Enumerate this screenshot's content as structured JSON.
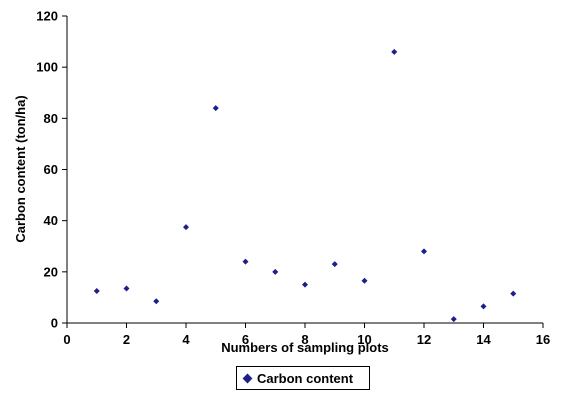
{
  "chart_data": {
    "type": "scatter",
    "xlabel": "Numbers of sampling plots",
    "ylabel": "Carbon content (ton/ha)",
    "xlim": [
      0,
      16
    ],
    "ylim": [
      0,
      120
    ],
    "xticks": [
      "0",
      "2",
      "4",
      "6",
      "8",
      "10",
      "12",
      "14",
      "16"
    ],
    "yticks": [
      "0",
      "20",
      "40",
      "60",
      "80",
      "100",
      "120"
    ],
    "grid": false,
    "legend_position": "bottom",
    "series": [
      {
        "name": "Carbon content",
        "color": "#1f1f8a",
        "marker": "diamond",
        "x": [
          1,
          2,
          3,
          4,
          5,
          6,
          7,
          8,
          9,
          10,
          11,
          12,
          13,
          14,
          15
        ],
        "y": [
          12.5,
          13.5,
          8.5,
          37.5,
          84,
          24,
          20,
          15,
          23,
          16.5,
          106,
          28,
          1.5,
          6.5,
          11.5
        ]
      }
    ]
  }
}
